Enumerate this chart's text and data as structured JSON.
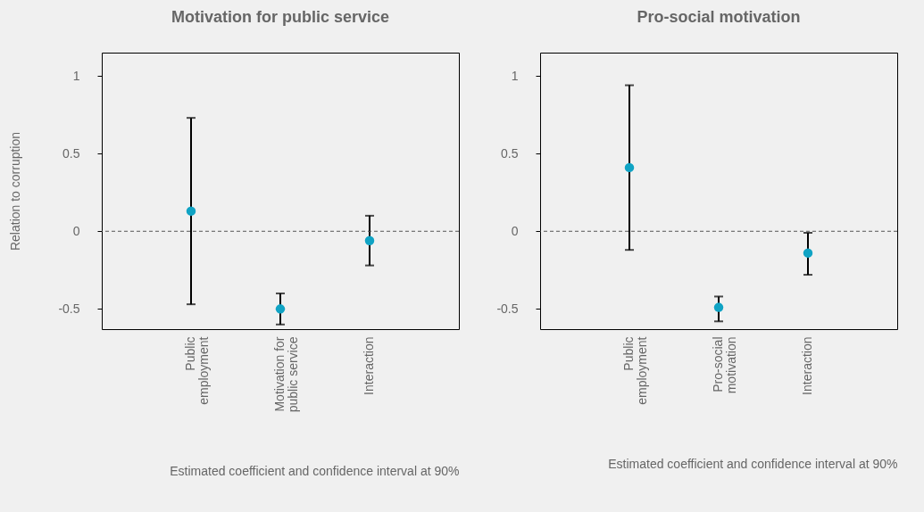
{
  "chart_data": [
    {
      "type": "scatter",
      "title": "Motivation for public service",
      "ylabel": "Relation to corruption",
      "categories": [
        "Public employment",
        "Motivation for public service",
        "Interaction"
      ],
      "series": [
        {
          "color": "#10a3c4",
          "values": [
            0.13,
            -0.5,
            -0.06
          ],
          "errors": [
            [
              -0.47,
              0.73
            ],
            [
              -0.6,
              -0.4
            ],
            [
              -0.22,
              0.1
            ]
          ]
        }
      ],
      "ylim": [
        -0.63,
        1.15
      ],
      "yticks": [
        -0.5,
        0,
        0.5,
        1
      ],
      "marker": "circle",
      "ref_lines": [
        {
          "axis": "y",
          "value": 0,
          "line_style": "dashed"
        }
      ],
      "annotations": [
        "Estimated coefficient and confidence interval at 90%"
      ]
    },
    {
      "type": "scatter",
      "title": "Pro-social motivation",
      "categories": [
        "Public employment",
        "Pro-social motivation",
        "Interaction"
      ],
      "series": [
        {
          "color": "#10a3c4",
          "values": [
            0.41,
            -0.49,
            -0.14
          ],
          "errors": [
            [
              -0.12,
              0.94
            ],
            [
              -0.58,
              -0.42
            ],
            [
              -0.28,
              -0.01
            ]
          ]
        }
      ],
      "ylim": [
        -0.63,
        1.15
      ],
      "yticks": [
        -0.5,
        0,
        0.5,
        1
      ],
      "marker": "circle",
      "ref_lines": [
        {
          "axis": "y",
          "value": 0,
          "line_style": "dashed"
        }
      ],
      "annotations": [
        "Estimated coefficient and confidence interval at 90%"
      ]
    }
  ]
}
